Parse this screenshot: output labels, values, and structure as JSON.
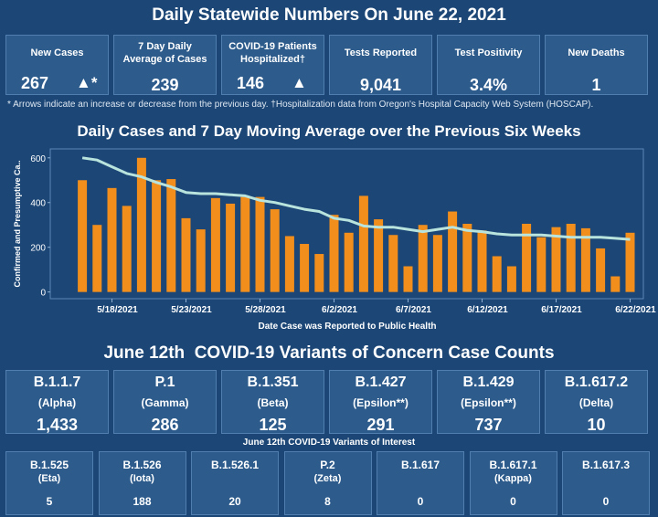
{
  "header": {
    "title": "Daily Statewide Numbers On June 22, 2021"
  },
  "stats": [
    {
      "label": "New Cases",
      "value": "267",
      "arrow": "▲*"
    },
    {
      "label": "7 Day Daily Average of Cases",
      "value": "239"
    },
    {
      "label": "COVID-19 Patients Hospitalized†",
      "value": "146",
      "arrow": "▲"
    },
    {
      "label": "Tests Reported",
      "value": "9,041"
    },
    {
      "label": "Test Positivity",
      "value": "3.4%"
    },
    {
      "label": "New Deaths",
      "value": "1"
    }
  ],
  "footnote": "* Arrows indicate an increase or decrease from the previous day. †Hospitalization data from Oregon's Hospital Capacity Web System (HOSCAP).",
  "chart_data": {
    "type": "bar",
    "title": "Daily Cases and 7 Day Moving Average over the Previous Six Weeks",
    "x_label": "Date Case was Reported to Public Health",
    "y_label": "Confirmed and Presumptive Ca..",
    "categories": [
      null,
      null,
      "5/18/2021",
      null,
      null,
      null,
      null,
      "5/23/2021",
      null,
      null,
      null,
      null,
      "5/28/2021",
      null,
      null,
      null,
      null,
      "6/2/2021",
      null,
      null,
      null,
      null,
      "6/7/2021",
      null,
      null,
      null,
      null,
      "6/12/2021",
      null,
      null,
      null,
      null,
      "6/17/2021",
      null,
      null,
      null,
      null,
      "6/22/2021"
    ],
    "series": [
      {
        "type": "bar",
        "color": "#f28e1c",
        "values": [
          500,
          300,
          465,
          385,
          600,
          500,
          505,
          330,
          280,
          420,
          395,
          425,
          425,
          370,
          250,
          215,
          170,
          345,
          265,
          430,
          325,
          255,
          115,
          300,
          255,
          360,
          305,
          275,
          160,
          115,
          305,
          245,
          290,
          305,
          285,
          195,
          70,
          265
        ]
      },
      {
        "type": "line",
        "color": "#b9e3dd",
        "values": [
          600,
          590,
          560,
          530,
          515,
          490,
          470,
          445,
          440,
          440,
          435,
          430,
          410,
          400,
          385,
          370,
          360,
          330,
          320,
          295,
          290,
          290,
          280,
          270,
          280,
          290,
          275,
          270,
          260,
          255,
          255,
          255,
          250,
          245,
          245,
          245,
          240,
          235
        ]
      }
    ],
    "ylim": [
      -30,
      640
    ],
    "yticks": [
      0,
      200,
      400,
      600
    ],
    "grid": false
  },
  "variants": {
    "title": "June 12th  COVID-19 Variants of Concern Case Counts",
    "concern": [
      {
        "name": "B.1.1.7",
        "alias": "(Alpha)",
        "count": "1,433"
      },
      {
        "name": "P.1",
        "alias": "(Gamma)",
        "count": "286"
      },
      {
        "name": "B.1.351",
        "alias": "(Beta)",
        "count": "125"
      },
      {
        "name": "B.1.427",
        "alias": "(Epsilon**)",
        "count": "291"
      },
      {
        "name": "B.1.429",
        "alias": "(Epsilon**)",
        "count": "737"
      },
      {
        "name": "B.1.617.2",
        "alias": "(Delta)",
        "count": "10"
      }
    ],
    "interest_title": "June 12th COVID-19 Variants of Interest",
    "interest": [
      {
        "name": "B.1.525",
        "alias": "(Eta)",
        "count": "5"
      },
      {
        "name": "B.1.526",
        "alias": "(Iota)",
        "count": "188"
      },
      {
        "name": "B.1.526.1",
        "count": "20"
      },
      {
        "name": "P.2",
        "alias": "(Zeta)",
        "count": "8"
      },
      {
        "name": "B.1.617",
        "count": "0"
      },
      {
        "name": "B.1.617.1",
        "alias": "(Kappa)",
        "count": "0"
      },
      {
        "name": "B.1.617.3",
        "count": "0"
      }
    ]
  }
}
